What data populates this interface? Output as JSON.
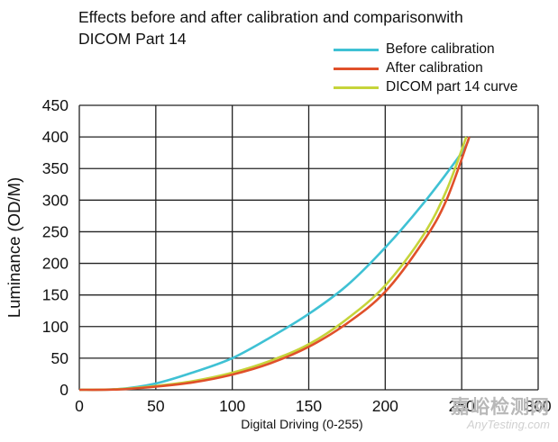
{
  "title_lines": [
    "Effects before and after calibration and comparisonwith",
    "DICOM Part 14"
  ],
  "watermark": {
    "cn": "嘉峪检测网",
    "en": "AnyTesting.com"
  },
  "chart_data": {
    "type": "line",
    "title": "Effects before and after calibration and comparisonwith DICOM Part 14",
    "xlabel": "Digital Driving (0-255)",
    "ylabel": "Luminance (OD/M)",
    "xlim": [
      0,
      300
    ],
    "ylim": [
      0,
      450
    ],
    "xticks": [
      0,
      50,
      100,
      150,
      200,
      250,
      300
    ],
    "yticks": [
      0,
      50,
      100,
      150,
      200,
      250,
      300,
      350,
      400,
      450
    ],
    "grid": true,
    "legend_position": "top-right",
    "series": [
      {
        "name": "Before calibration",
        "color": "#3fc1d4",
        "x": [
          0,
          25,
          50,
          75,
          100,
          125,
          150,
          175,
          200,
          225,
          250,
          255
        ],
        "y": [
          0,
          1,
          10,
          28,
          50,
          83,
          120,
          165,
          225,
          295,
          375,
          400
        ]
      },
      {
        "name": "After calibration",
        "color": "#e0502a",
        "x": [
          0,
          25,
          50,
          75,
          100,
          125,
          150,
          175,
          200,
          225,
          240,
          255
        ],
        "y": [
          0,
          0.5,
          5,
          12,
          24,
          42,
          68,
          105,
          155,
          235,
          300,
          400
        ]
      },
      {
        "name": "DICOM part 14 curve",
        "color": "#c6d43a",
        "x": [
          0,
          25,
          50,
          75,
          100,
          125,
          150,
          175,
          200,
          225,
          240,
          253
        ],
        "y": [
          0,
          1,
          6,
          14,
          27,
          46,
          72,
          112,
          165,
          245,
          315,
          400
        ]
      }
    ]
  }
}
